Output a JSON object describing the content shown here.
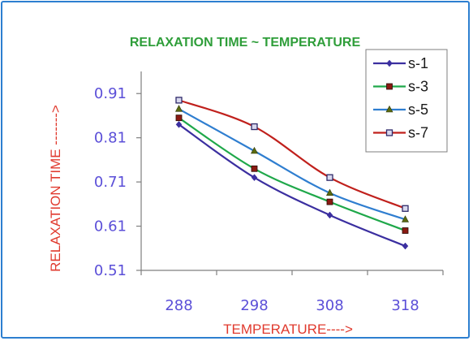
{
  "colors": {
    "frame": "#2d7fd0",
    "title": "#2f9e3a",
    "axis_title": "#e03a2e",
    "tick_label": "#5b4fd8",
    "axis": "#7f7f7f"
  },
  "chart_data": {
    "type": "line",
    "title": "RELAXATION TIME ~  TEMPERATURE",
    "xlabel": "TEMPERATURE---->",
    "ylabel": "RELAXATION TIME  ------->",
    "x": [
      288,
      298,
      308,
      318
    ],
    "xlim": [
      283,
      323
    ],
    "ylim": [
      0.51,
      0.96
    ],
    "yticks": [
      0.51,
      0.61,
      0.71,
      0.81,
      0.91
    ],
    "ytick_labels": [
      "0.51",
      "0.61",
      "0.71",
      "0.81",
      "0.91"
    ],
    "xtick_labels": [
      "288",
      "298",
      "308",
      "318"
    ],
    "grid": false,
    "legend_position": "top-right",
    "series": [
      {
        "name": "s-1",
        "color": "#3b2fa0",
        "marker": "diamond",
        "values": [
          0.84,
          0.72,
          0.635,
          0.565
        ]
      },
      {
        "name": "s-3",
        "color": "#1fa84a",
        "marker": "square",
        "values": [
          0.855,
          0.74,
          0.665,
          0.6
        ]
      },
      {
        "name": "s-5",
        "color": "#2f7ed0",
        "marker": "triangle",
        "values": [
          0.875,
          0.78,
          0.685,
          0.625
        ]
      },
      {
        "name": "s-7",
        "color": "#c0201c",
        "marker": "hatched-square",
        "values": [
          0.895,
          0.835,
          0.72,
          0.65
        ]
      }
    ]
  }
}
